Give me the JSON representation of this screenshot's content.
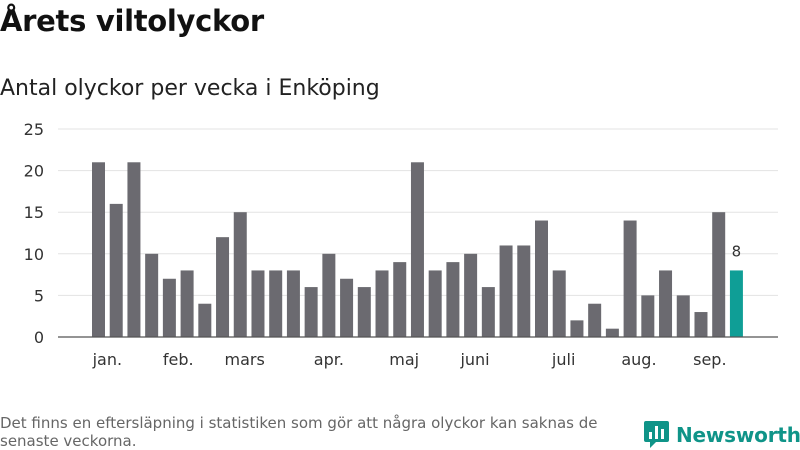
{
  "title": "Årets viltolyckor",
  "subtitle": "Antal olyckor per vecka i Enköping",
  "footnote": "Det finns en eftersläpning i statistiken som gör att några olyckor kan saknas de senaste veckorna.",
  "brand": {
    "name": "Newsworthy",
    "icon": "newsworthy-logo-icon",
    "color": "#0f9488"
  },
  "chart_data": {
    "type": "bar",
    "title": "Antal olyckor per vecka i Enköping",
    "values": [
      21,
      16,
      21,
      10,
      7,
      8,
      4,
      12,
      15,
      8,
      8,
      8,
      6,
      10,
      7,
      6,
      8,
      9,
      21,
      8,
      9,
      10,
      6,
      11,
      11,
      14,
      8,
      2,
      4,
      1,
      14,
      5,
      8,
      5,
      3,
      15,
      8
    ],
    "ylim": [
      0,
      25
    ],
    "yticks": [
      0,
      5,
      10,
      15,
      20,
      25
    ],
    "grid": true,
    "month_labels": [
      {
        "label": "jan.",
        "bar_index": 0.5
      },
      {
        "label": "feb.",
        "bar_index": 4.5
      },
      {
        "label": "mars",
        "bar_index": 8.25
      },
      {
        "label": "apr.",
        "bar_index": 13
      },
      {
        "label": "maj",
        "bar_index": 17.25
      },
      {
        "label": "juni",
        "bar_index": 21.25
      },
      {
        "label": "juli",
        "bar_index": 26.25
      },
      {
        "label": "aug.",
        "bar_index": 30.5
      },
      {
        "label": "sep.",
        "bar_index": 34.5
      }
    ],
    "highlight_index": 36,
    "highlight_label": "8",
    "colors": {
      "bar": "#6b6a70",
      "highlight": "#0f9e96",
      "grid": "#e3e3e3",
      "axis": "#555555",
      "text": "#333333"
    }
  }
}
